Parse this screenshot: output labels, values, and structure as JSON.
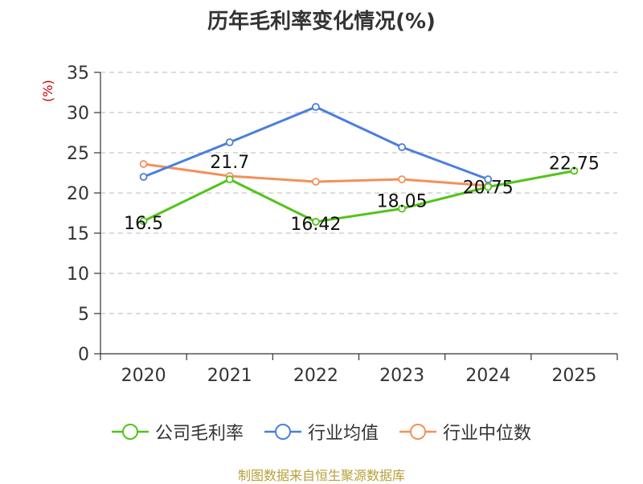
{
  "chart_data": {
    "type": "line",
    "title": "历年毛利率变化情况(%)",
    "ylabel": "(%)",
    "xlabel": "",
    "ylim": [
      0,
      35
    ],
    "yticks": [
      0,
      5,
      10,
      15,
      20,
      25,
      30,
      35
    ],
    "categories": [
      "2020",
      "2021",
      "2022",
      "2023",
      "2024",
      "2025"
    ],
    "grid": true,
    "legend_position": "bottom",
    "series": [
      {
        "name": "公司毛利率",
        "color": "#52c41a",
        "values": [
          16.5,
          21.7,
          16.42,
          18.05,
          20.75,
          22.75
        ],
        "labels": [
          "16.5",
          "21.7",
          "16.42",
          "18.05",
          "20.75",
          "22.75"
        ]
      },
      {
        "name": "行业均值",
        "color": "#4a7fdc",
        "values": [
          22.0,
          26.3,
          30.7,
          25.7,
          21.7,
          null
        ]
      },
      {
        "name": "行业中位数",
        "color": "#f4905a",
        "values": [
          23.6,
          22.1,
          21.4,
          21.7,
          20.9,
          null
        ]
      }
    ]
  },
  "source_note": "制图数据来自恒生聚源数据库"
}
